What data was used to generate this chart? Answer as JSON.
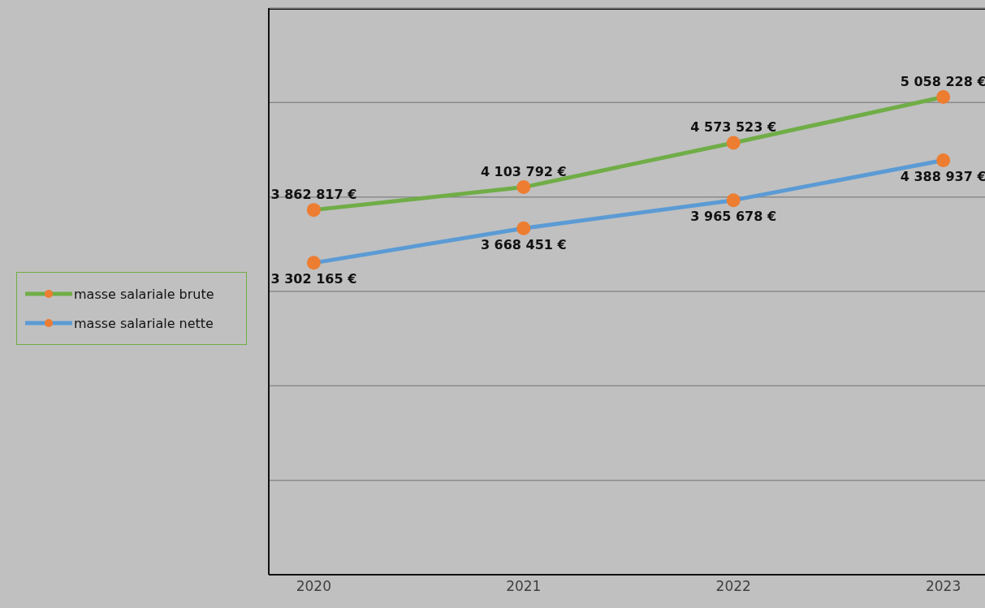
{
  "chart_data": {
    "type": "line",
    "categories": [
      "2020",
      "2021",
      "2022",
      "2023"
    ],
    "series": [
      {
        "name": "masse salariale brute",
        "color": "#70ad47",
        "values": [
          3862817,
          4103792,
          4573523,
          5058228
        ],
        "value_labels": [
          "3 862 817 €",
          "4 103 792 €",
          "4 573 523 €",
          "5 058 228 €"
        ]
      },
      {
        "name": "masse salariale nette",
        "color": "#5b9bd5",
        "values": [
          3302165,
          3668451,
          3965678,
          4388937
        ],
        "value_labels": [
          "3 302 165 €",
          "3 668 451 €",
          "3 965 678 €",
          "4 388 937 €"
        ]
      }
    ],
    "ylim": [
      0,
      6000000
    ],
    "yticks": [
      {
        "value": 0,
        "label": null
      },
      {
        "value": 1000000,
        "label": null
      },
      {
        "value": 2000000,
        "label": null
      },
      {
        "value": 3000000,
        "label": null
      },
      {
        "value": 4000000,
        "label": null
      },
      {
        "value": 5000000,
        "label": null
      },
      {
        "value": 6000000,
        "label": null
      }
    ],
    "tick_labels": "x",
    "grid": "y",
    "legend": "left",
    "marker": "circle"
  }
}
